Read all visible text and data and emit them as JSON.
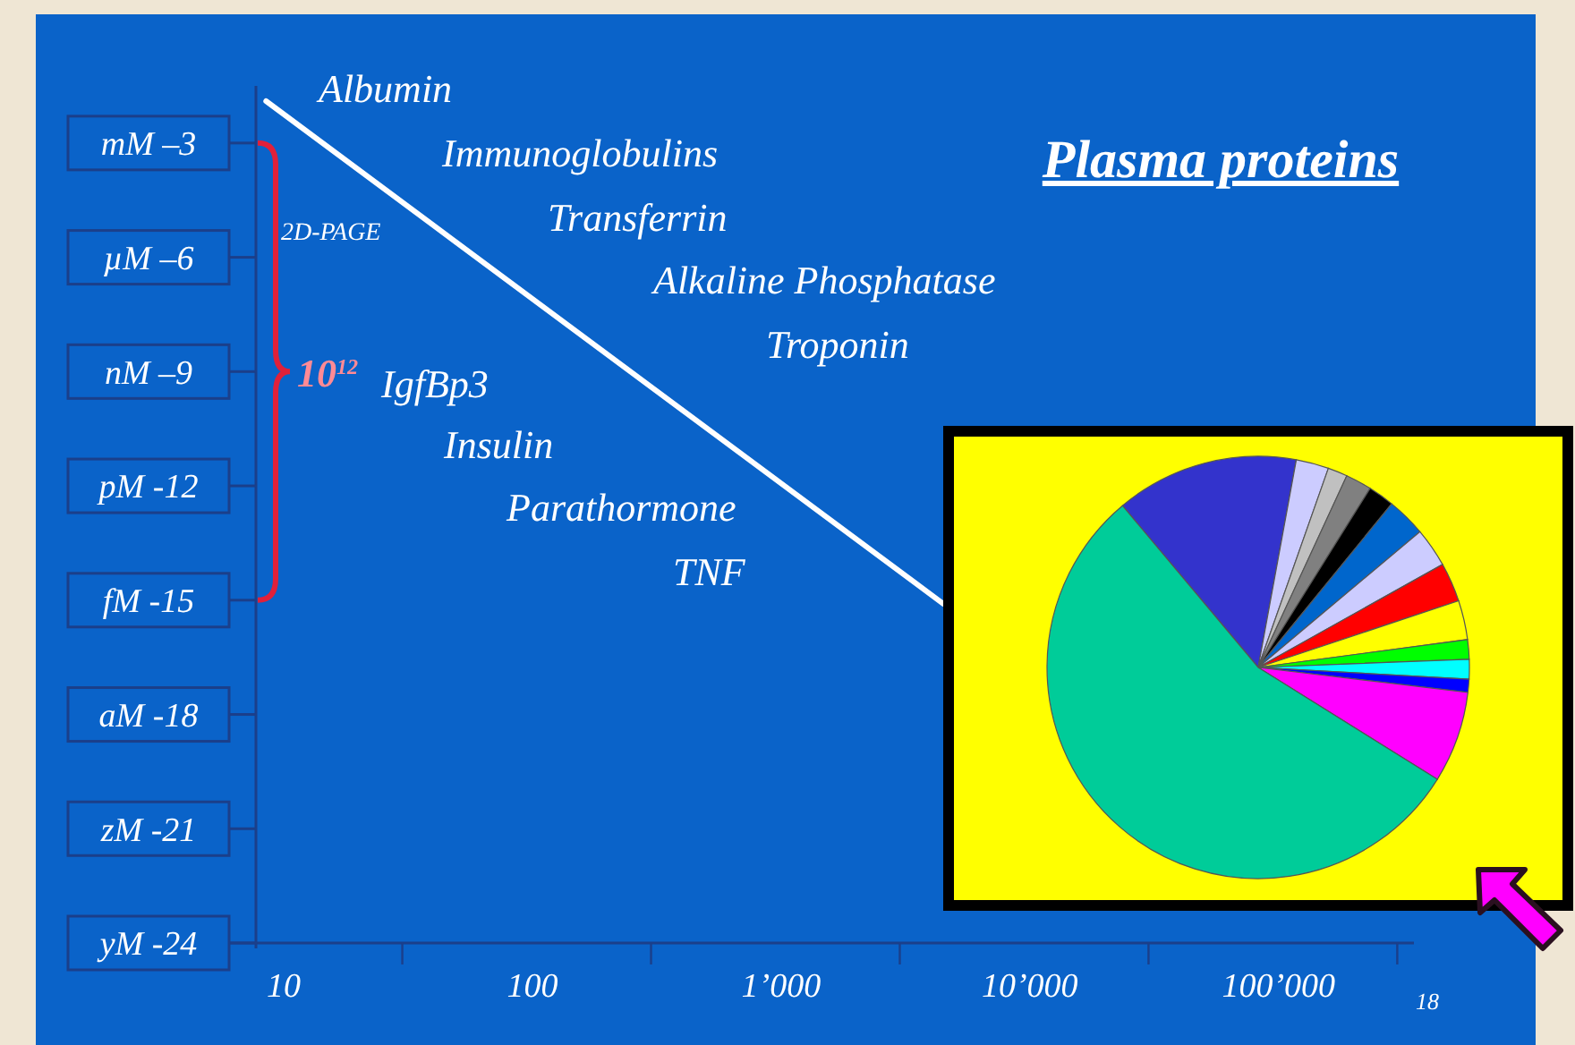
{
  "chart_data": [
    {
      "type": "line",
      "title": "Plasma proteins",
      "annotations": [
        "Albumin",
        "Immunoglobulins",
        "Transferrin",
        "Alkaline Phosphatase",
        "Troponin",
        "IgfBp3",
        "Insulin",
        "Parathormone",
        "TNF",
        "2D-PAGE",
        "10$^{12}$",
        "18"
      ],
      "log": "x",
      "xlim": [
        8,
        350000
      ],
      "xticks": [
        {
          "value": 10,
          "label": "10"
        },
        {
          "value": 30,
          "label": null
        },
        {
          "value": 100,
          "label": "100"
        },
        {
          "value": 300,
          "label": null
        },
        {
          "value": 1000,
          "label": "1’000"
        },
        {
          "value": 3000,
          "label": null
        },
        {
          "value": 10000,
          "label": "10’000"
        },
        {
          "value": 30000,
          "label": null
        },
        {
          "value": 100000,
          "label": "100’000"
        },
        {
          "value": 300000,
          "label": null
        }
      ],
      "ylim": [
        -24,
        -1.5
      ],
      "yticks": [
        {
          "value": -3,
          "label": "mM –3"
        },
        {
          "value": -6,
          "label": "µM –6"
        },
        {
          "value": -9,
          "label": "nM –9"
        },
        {
          "value": -12,
          "label": "pM -12"
        },
        {
          "value": -15,
          "label": "fM -15"
        },
        {
          "value": -18,
          "label": "aM -18"
        },
        {
          "value": -21,
          "label": "zM -21"
        },
        {
          "value": -24,
          "label": "yM -24"
        }
      ],
      "x": [
        8.5,
        4500
      ],
      "series": [
        {
          "color": "#ffffff",
          "values": [
            -1.9,
            -15.1
          ]
        }
      ]
    },
    {
      "type": "pie",
      "categories": [
        null,
        null,
        null,
        null,
        null,
        null,
        null,
        null,
        null,
        null,
        null,
        null,
        null,
        null
      ],
      "values": [
        14,
        2.5,
        1.5,
        2,
        2,
        3,
        3,
        3,
        3,
        1.5,
        1.5,
        1,
        7,
        55
      ],
      "colors": [
        "#3333cc",
        "#ccccff",
        "#c0c0c0",
        "#808080",
        "#000000",
        "#0066cc",
        "#ccccff",
        "#ff0000",
        "#ffff00",
        "#00ff00",
        "#00ffff",
        "#0000ff",
        "#ff00ff",
        "#00cc99"
      ]
    }
  ]
}
